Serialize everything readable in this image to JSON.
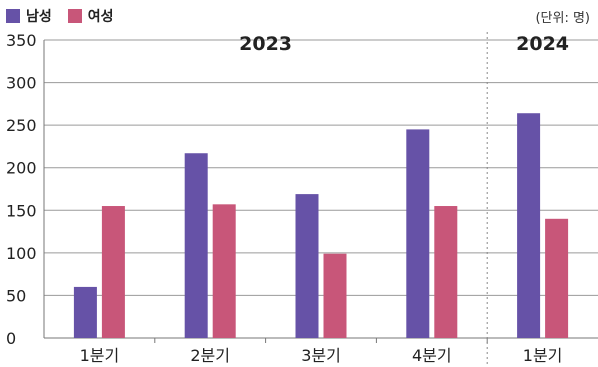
{
  "legend": {
    "male_label": "남성",
    "female_label": "여성"
  },
  "unit_label": "(단위: 명)",
  "colors": {
    "male": "#6652a7",
    "female": "#c85679"
  },
  "chart_data": {
    "type": "bar",
    "title": "",
    "xlabel": "",
    "ylabel": "",
    "ylim": [
      0,
      350
    ],
    "yticks": [
      0,
      50,
      100,
      150,
      200,
      250,
      300,
      350
    ],
    "grid": true,
    "legend_position": "top-left",
    "categories": [
      "1분기",
      "2분기",
      "3분기",
      "4분기",
      "1분기"
    ],
    "groups": [
      {
        "label": "2023",
        "categories": [
          0,
          1,
          2,
          3
        ]
      },
      {
        "label": "2024",
        "categories": [
          4
        ]
      }
    ],
    "series": [
      {
        "name": "남성",
        "values": [
          60,
          217,
          169,
          245,
          264
        ]
      },
      {
        "name": "여성",
        "values": [
          155,
          157,
          99,
          155,
          140
        ]
      }
    ]
  }
}
